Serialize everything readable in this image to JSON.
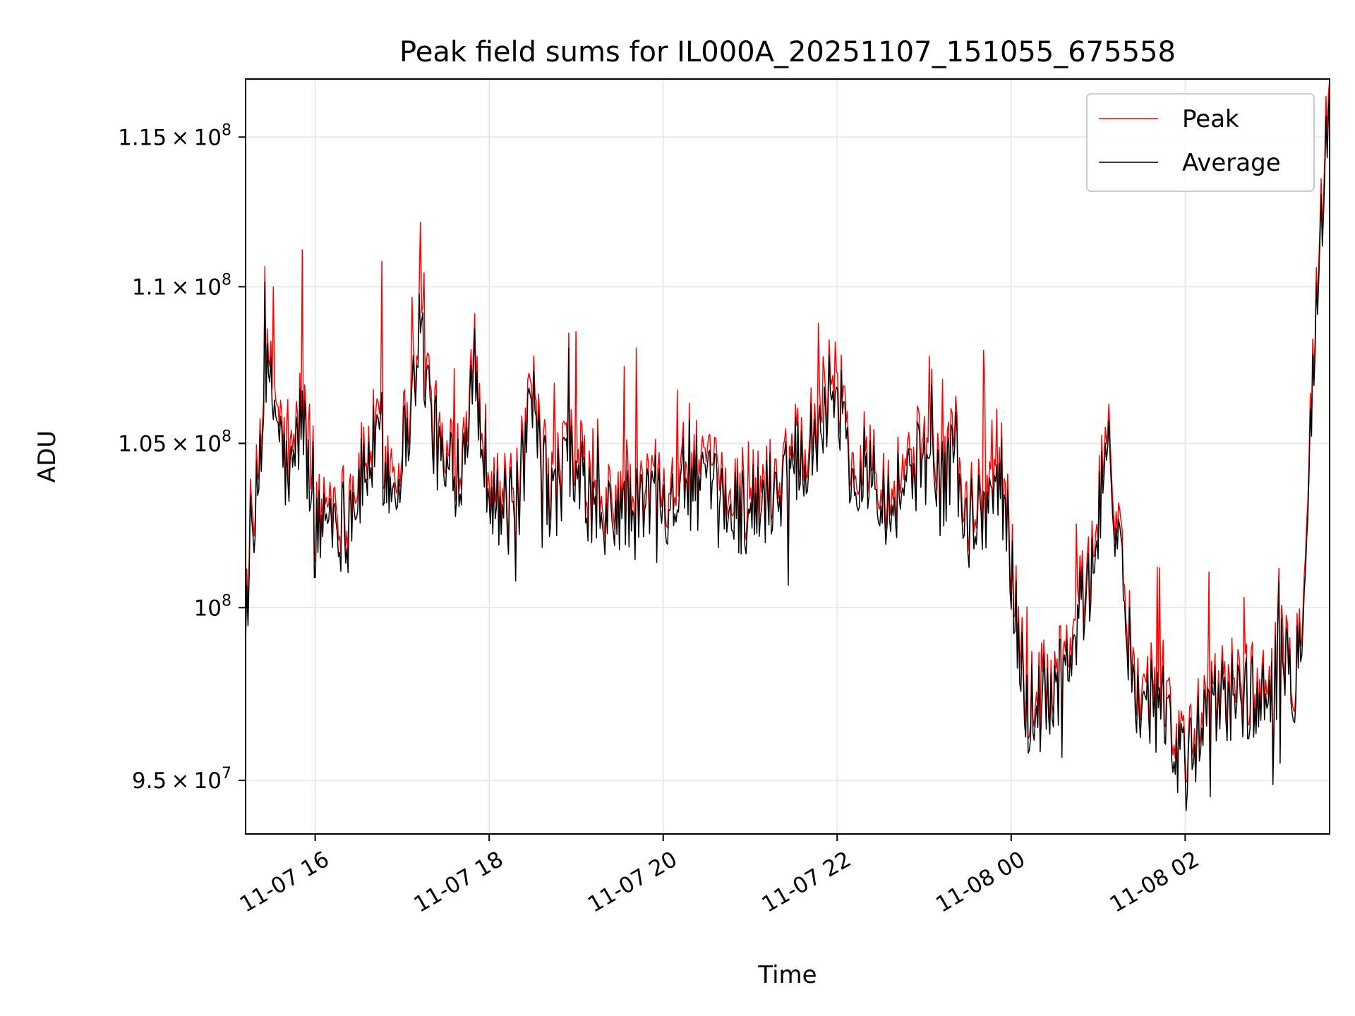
{
  "chart_data": {
    "type": "line",
    "title": "Peak field sums for IL000A_20251107_151055_675558",
    "xlabel": "Time",
    "ylabel": "ADU",
    "y_scale": "log",
    "grid": true,
    "legend_position": "top-right",
    "xlim_hours": [
      15.2,
      27.66
    ],
    "ylim": [
      93500000,
      117000000
    ],
    "x_ticks": [
      {
        "hour": 16,
        "label": "11-07 16"
      },
      {
        "hour": 18,
        "label": "11-07 18"
      },
      {
        "hour": 20,
        "label": "11-07 20"
      },
      {
        "hour": 22,
        "label": "11-07 22"
      },
      {
        "hour": 24,
        "label": "11-08 00"
      },
      {
        "hour": 26,
        "label": "11-08 02"
      }
    ],
    "y_ticks": [
      {
        "value": 95000000,
        "base": "9.5",
        "exp": "7"
      },
      {
        "value": 100000000,
        "base": "",
        "exp": "8"
      },
      {
        "value": 105000000,
        "base": "1.05",
        "exp": "8"
      },
      {
        "value": 110000000,
        "base": "1.1",
        "exp": "8"
      },
      {
        "value": 115000000,
        "base": "1.15",
        "exp": "8"
      }
    ],
    "x_hours": [
      15.2,
      15.3,
      15.42,
      15.55,
      15.7,
      15.85,
      16.0,
      16.15,
      16.3,
      16.5,
      16.7,
      16.9,
      17.1,
      17.2,
      17.35,
      17.5,
      17.7,
      17.8,
      17.95,
      18.1,
      18.3,
      18.5,
      18.7,
      18.9,
      19.1,
      19.3,
      19.5,
      19.7,
      19.9,
      20.1,
      20.3,
      20.5,
      20.7,
      20.9,
      21.1,
      21.3,
      21.5,
      21.7,
      21.85,
      22.0,
      22.2,
      22.4,
      22.6,
      22.8,
      23.0,
      23.2,
      23.35,
      23.5,
      23.65,
      23.8,
      23.9,
      24.0,
      24.2,
      24.4,
      24.6,
      24.8,
      24.95,
      25.1,
      25.25,
      25.4,
      25.55,
      25.7,
      25.85,
      26.0,
      26.15,
      26.3,
      26.5,
      26.7,
      26.9,
      27.1,
      27.25,
      27.35,
      27.45,
      27.55,
      27.66
    ],
    "series": [
      {
        "name": "Peak",
        "color": "#ff0000",
        "values": [
          100500000,
          102500000,
          107500000,
          106500000,
          104000000,
          106500000,
          102500000,
          103500000,
          103000000,
          104000000,
          105500000,
          104000000,
          106500000,
          109000000,
          106000000,
          104200000,
          105000000,
          108000000,
          105000000,
          103500000,
          103200000,
          106500000,
          103500000,
          105000000,
          104000000,
          102800000,
          103500000,
          103200000,
          104000000,
          103800000,
          104500000,
          104000000,
          103500000,
          103400000,
          103500000,
          104000000,
          105000000,
          105500000,
          106500000,
          107500000,
          104000000,
          105000000,
          103500000,
          104500000,
          105000000,
          104000000,
          105500000,
          102500000,
          103500000,
          104000000,
          104500000,
          101500000,
          97000000,
          97800000,
          98200000,
          100500000,
          101500000,
          106000000,
          101500000,
          98500000,
          97500000,
          98500000,
          96500000,
          95500000,
          96500000,
          97300000,
          98000000,
          97800000,
          97500000,
          98800000,
          98100000,
          100500000,
          106500000,
          112000000,
          116800000
        ]
      },
      {
        "name": "Average",
        "color": "#000000",
        "values": [
          100000000,
          102000000,
          107000000,
          106000000,
          103500000,
          106000000,
          102000000,
          103000000,
          102500000,
          103500000,
          105000000,
          103500000,
          106000000,
          108800000,
          105500000,
          103800000,
          104500000,
          107500000,
          104500000,
          103000000,
          102800000,
          106000000,
          103000000,
          104500000,
          103500000,
          102300000,
          103000000,
          102800000,
          103500000,
          103300000,
          104000000,
          103500000,
          103000000,
          103000000,
          103000000,
          103600000,
          104600000,
          105000000,
          106000000,
          107000000,
          103500000,
          104500000,
          103000000,
          104000000,
          104500000,
          103500000,
          105000000,
          102000000,
          103000000,
          103500000,
          104000000,
          101000000,
          96600000,
          97400000,
          97800000,
          100000000,
          101000000,
          105500000,
          101000000,
          98000000,
          97000000,
          98000000,
          96000000,
          95200000,
          96000000,
          97000000,
          97500000,
          97400000,
          97100000,
          98400000,
          97800000,
          100000000,
          106000000,
          111500000,
          116000000
        ]
      }
    ]
  }
}
